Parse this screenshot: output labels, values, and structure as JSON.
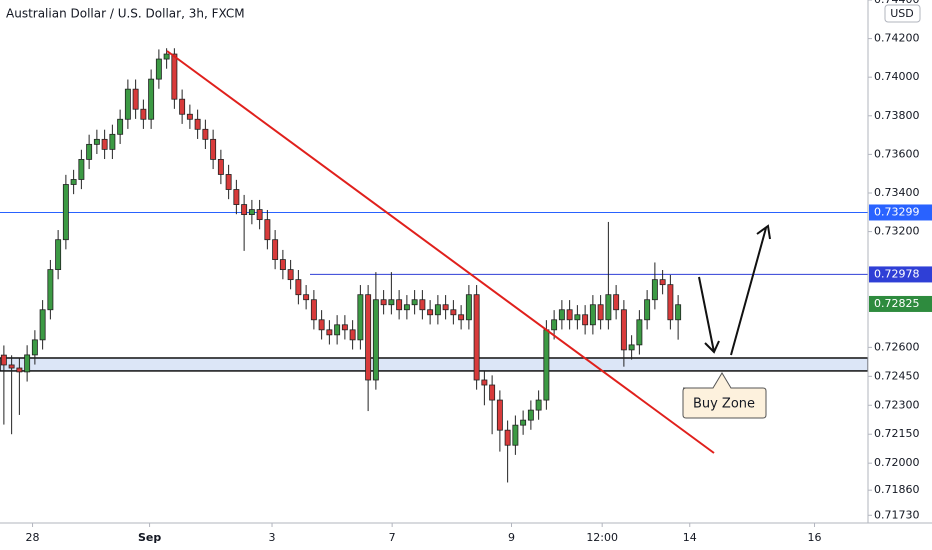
{
  "chart_data": {
    "type": "candlestick",
    "title": "Australian Dollar / U.S. Dollar, 3h, FXCM",
    "currency": "USD",
    "up_color": "#3c9a44",
    "down_color": "#d83b3b",
    "open": [
      0.7256,
      0.72509,
      0.72493,
      0.72473,
      0.72561,
      0.72639,
      0.72795,
      0.73003,
      0.73158,
      0.73444,
      0.7347,
      0.73574,
      0.73652,
      0.73678,
      0.73626,
      0.73704,
      0.73782,
      0.73938,
      0.73834,
      0.73782,
      0.7399,
      0.74094,
      0.7412,
      0.73886,
      0.73808,
      0.73782,
      0.7373,
      0.73678,
      0.73574,
      0.73496,
      0.73418,
      0.7334,
      0.73288,
      0.73314,
      0.73262,
      0.73158,
      0.73055,
      0.73003,
      0.72951,
      0.72873,
      0.72847,
      0.72743,
      0.72691,
      0.72665,
      0.72717,
      0.72691,
      0.72639,
      0.72873,
      0.72431,
      0.72847,
      0.72821,
      0.72847,
      0.72795,
      0.72821,
      0.72847,
      0.72795,
      0.72769,
      0.72821,
      0.72795,
      0.72769,
      0.72743,
      0.72873,
      0.72431,
      0.72405,
      0.72327,
      0.72171,
      0.72093,
      0.72197,
      0.72223,
      0.72275,
      0.72327,
      0.72691,
      0.72743,
      0.72795,
      0.72743,
      0.72769,
      0.72717,
      0.72821,
      0.72743,
      0.72873,
      0.72795,
      0.72587,
      0.72613,
      0.72743,
      0.72847,
      0.72951,
      0.72925,
      0.72743
    ],
    "high": [
      0.7261,
      0.72559,
      0.72543,
      0.72611,
      0.72689,
      0.72845,
      0.73053,
      0.73208,
      0.73494,
      0.7352,
      0.73624,
      0.73702,
      0.73728,
      0.73728,
      0.73754,
      0.73832,
      0.73988,
      0.73988,
      0.73884,
      0.7404,
      0.74144,
      0.7415,
      0.7415,
      0.73936,
      0.73858,
      0.73832,
      0.7378,
      0.73728,
      0.73624,
      0.73546,
      0.73468,
      0.7339,
      0.73364,
      0.73364,
      0.73312,
      0.73208,
      0.73105,
      0.73053,
      0.73001,
      0.72923,
      0.72897,
      0.72793,
      0.72741,
      0.72767,
      0.72767,
      0.72741,
      0.72923,
      0.72923,
      0.7299,
      0.72897,
      0.7299,
      0.72897,
      0.72871,
      0.72897,
      0.72897,
      0.72845,
      0.72871,
      0.72871,
      0.72845,
      0.72819,
      0.72923,
      0.72923,
      0.72481,
      0.72455,
      0.72377,
      0.72221,
      0.72247,
      0.72273,
      0.72325,
      0.72377,
      0.72741,
      0.72793,
      0.72845,
      0.72845,
      0.72819,
      0.72819,
      0.72871,
      0.72871,
      0.7325,
      0.72923,
      0.72845,
      0.72663,
      0.72793,
      0.72897,
      0.7304,
      0.73001,
      0.72975,
      0.72871
    ],
    "low": [
      0.722,
      0.7215,
      0.7225,
      0.72423,
      0.72511,
      0.72589,
      0.72745,
      0.72953,
      0.73108,
      0.73394,
      0.7342,
      0.73524,
      0.73602,
      0.73576,
      0.73576,
      0.73654,
      0.73732,
      0.73784,
      0.73732,
      0.73732,
      0.7394,
      0.74044,
      0.73836,
      0.73758,
      0.73732,
      0.7368,
      0.73628,
      0.73524,
      0.73446,
      0.73368,
      0.7329,
      0.731,
      0.73238,
      0.73212,
      0.73108,
      0.73005,
      0.72953,
      0.72901,
      0.72823,
      0.72797,
      0.72693,
      0.72641,
      0.72615,
      0.72615,
      0.72641,
      0.72589,
      0.72589,
      0.7227,
      0.72381,
      0.72771,
      0.72771,
      0.72745,
      0.72745,
      0.72771,
      0.72745,
      0.72719,
      0.72719,
      0.72745,
      0.72719,
      0.72693,
      0.72693,
      0.72381,
      0.723,
      0.7215,
      0.7206,
      0.719,
      0.72043,
      0.72147,
      0.72173,
      0.72225,
      0.72277,
      0.72641,
      0.72693,
      0.72693,
      0.72693,
      0.72667,
      0.72667,
      0.72693,
      0.72693,
      0.72745,
      0.725,
      0.72537,
      0.72563,
      0.72693,
      0.72797,
      0.72875,
      0.72693,
      0.7264
    ],
    "close": [
      0.72509,
      0.72493,
      0.72473,
      0.72561,
      0.72639,
      0.72795,
      0.73003,
      0.73158,
      0.73444,
      0.7347,
      0.73574,
      0.73652,
      0.73678,
      0.73626,
      0.73704,
      0.73782,
      0.73938,
      0.73834,
      0.73782,
      0.7399,
      0.74094,
      0.7412,
      0.73886,
      0.73808,
      0.73782,
      0.7373,
      0.73678,
      0.73574,
      0.73496,
      0.73418,
      0.7334,
      0.73288,
      0.73314,
      0.73262,
      0.73158,
      0.73055,
      0.73003,
      0.72951,
      0.72873,
      0.72847,
      0.72743,
      0.72691,
      0.72665,
      0.72717,
      0.72691,
      0.72639,
      0.72873,
      0.72431,
      0.72847,
      0.72821,
      0.72847,
      0.72795,
      0.72821,
      0.72847,
      0.72795,
      0.72769,
      0.72821,
      0.72795,
      0.72769,
      0.72743,
      0.72873,
      0.72431,
      0.72405,
      0.72327,
      0.72171,
      0.72093,
      0.72197,
      0.72223,
      0.72275,
      0.72327,
      0.72691,
      0.72743,
      0.72795,
      0.72743,
      0.72769,
      0.72717,
      0.72821,
      0.72743,
      0.72873,
      0.72795,
      0.72587,
      0.72613,
      0.72743,
      0.72847,
      0.72951,
      0.72925,
      0.72743,
      0.72821
    ],
    "xlim": [
      -0.5,
      111.5
    ],
    "xticks": [
      {
        "value": 3.7,
        "label": "28"
      },
      {
        "value": 18.8,
        "label": "Sep"
      },
      {
        "value": 34.6,
        "label": "3"
      },
      {
        "value": 50.1,
        "label": "7"
      },
      {
        "value": 65.5,
        "label": "9"
      },
      {
        "value": 77.2,
        "label": "12:00"
      },
      {
        "value": 88.5,
        "label": "14"
      },
      {
        "value": 104.6,
        "label": "16"
      }
    ],
    "ylim": [
      0.7169,
      0.744
    ],
    "yticks": [
      {
        "value": 0.744,
        "label": "0.74400"
      },
      {
        "value": 0.742,
        "label": "0.74200"
      },
      {
        "value": 0.74,
        "label": "0.74000"
      },
      {
        "value": 0.738,
        "label": "0.73800"
      },
      {
        "value": 0.736,
        "label": "0.73600"
      },
      {
        "value": 0.734,
        "label": "0.73400"
      },
      {
        "value": 0.732,
        "label": "0.73200"
      },
      {
        "value": 0.726,
        "label": "0.72600"
      },
      {
        "value": 0.7245,
        "label": "0.72450"
      },
      {
        "value": 0.723,
        "label": "0.72300"
      },
      {
        "value": 0.7215,
        "label": "0.72150"
      },
      {
        "value": 0.72,
        "label": "0.72000"
      },
      {
        "value": 0.7186,
        "label": "0.71860"
      },
      {
        "value": 0.7173,
        "label": "0.71730"
      }
    ],
    "price_lines": [
      {
        "value": 0.73299,
        "color": "#2962ff"
      },
      {
        "value": 0.72978,
        "color": "#2f3fd6"
      },
      {
        "value": 0.72825,
        "color": "#2e8b3e"
      }
    ],
    "zone": {
      "low": 0.72478,
      "high": 0.72545,
      "label": "Buy Zone"
    }
  }
}
